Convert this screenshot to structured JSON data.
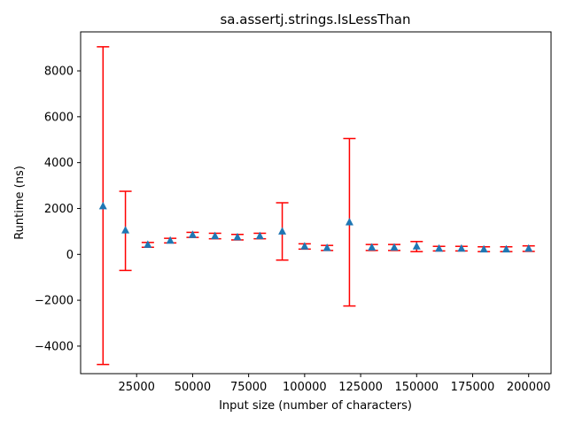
{
  "chart_data": {
    "type": "scatter",
    "title": "sa.assertj.strings.IsLessThan",
    "xlabel": "Input size (number of characters)",
    "ylabel": "Runtime (ns)",
    "xlim": [
      0,
      210000
    ],
    "ylim": [
      -5200,
      9700
    ],
    "x_ticks": [
      25000,
      50000,
      75000,
      100000,
      125000,
      150000,
      175000,
      200000
    ],
    "y_ticks": [
      -4000,
      -2000,
      0,
      2000,
      4000,
      6000,
      8000
    ],
    "grid": false,
    "marker_color": "#1f77b4",
    "errorbar_color": "#ff0000",
    "series": [
      {
        "marker": "triangle",
        "points": [
          {
            "x": 10000,
            "y": 2100,
            "low": -4800,
            "high": 9050
          },
          {
            "x": 20000,
            "y": 1050,
            "low": -700,
            "high": 2750
          },
          {
            "x": 30000,
            "y": 420,
            "low": 310,
            "high": 520
          },
          {
            "x": 40000,
            "y": 600,
            "low": 500,
            "high": 700
          },
          {
            "x": 50000,
            "y": 850,
            "low": 740,
            "high": 960
          },
          {
            "x": 60000,
            "y": 800,
            "low": 680,
            "high": 920
          },
          {
            "x": 70000,
            "y": 750,
            "low": 630,
            "high": 870
          },
          {
            "x": 80000,
            "y": 800,
            "low": 680,
            "high": 920
          },
          {
            "x": 90000,
            "y": 1000,
            "low": -250,
            "high": 2250
          },
          {
            "x": 100000,
            "y": 350,
            "low": 230,
            "high": 460
          },
          {
            "x": 110000,
            "y": 280,
            "low": 170,
            "high": 390
          },
          {
            "x": 120000,
            "y": 1400,
            "low": -2250,
            "high": 5050
          },
          {
            "x": 130000,
            "y": 300,
            "low": 170,
            "high": 430
          },
          {
            "x": 140000,
            "y": 300,
            "low": 170,
            "high": 430
          },
          {
            "x": 150000,
            "y": 350,
            "low": 120,
            "high": 560
          },
          {
            "x": 160000,
            "y": 250,
            "low": 150,
            "high": 350
          },
          {
            "x": 170000,
            "y": 250,
            "low": 150,
            "high": 350
          },
          {
            "x": 180000,
            "y": 220,
            "low": 120,
            "high": 330
          },
          {
            "x": 190000,
            "y": 220,
            "low": 120,
            "high": 330
          },
          {
            "x": 200000,
            "y": 250,
            "low": 130,
            "high": 370
          }
        ]
      }
    ]
  }
}
